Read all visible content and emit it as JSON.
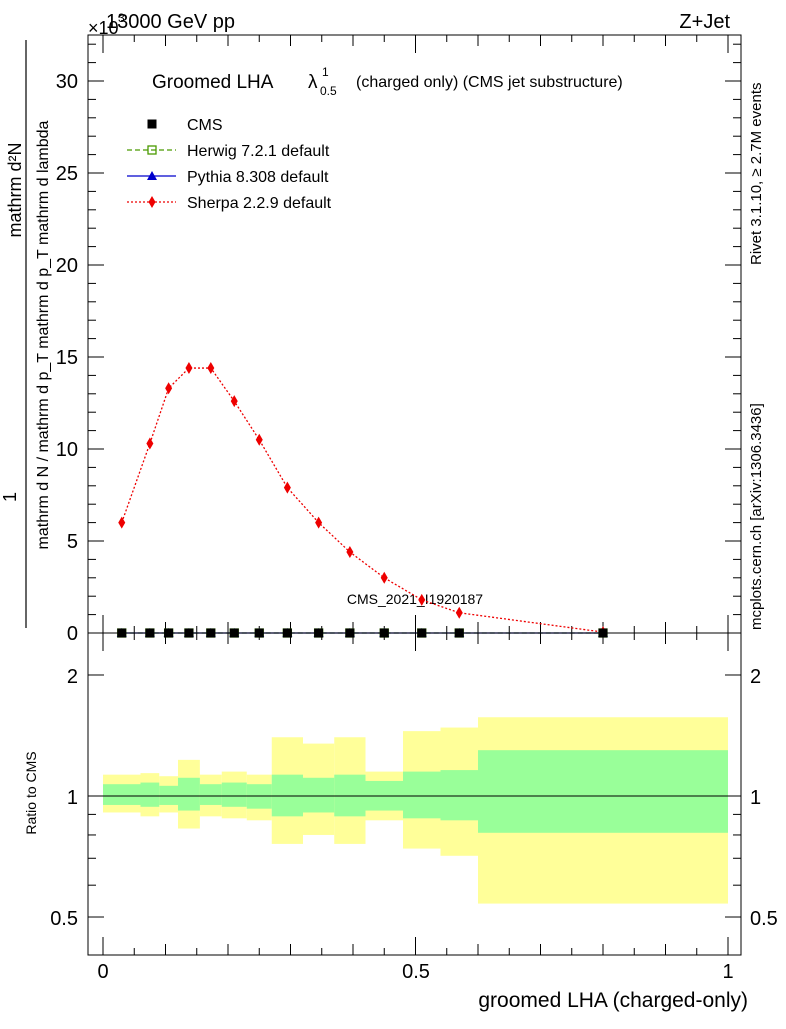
{
  "header": {
    "energy": "13000 GeV pp",
    "process": "Z+Jet",
    "multiplier": "×10",
    "multiplier_exp": "3"
  },
  "side_labels": {
    "rivet": "Rivet 3.1.10, ≥ 2.7M events",
    "mcplots": "mcplots.cern.ch [arXiv:1306.3436]"
  },
  "analysis_id": "CMS_2021_I1920187",
  "main_plot": {
    "title_prefix": "Groomed LHA",
    "title_lambda": "λ",
    "title_sup": "1",
    "title_sub": "0.5",
    "title_suffix": "(charged only) (CMS jet substructure)",
    "ylabel_numerator": "mathrm d²N",
    "ylabel_denominator": "mathrm d N / mathrm d p_T mathrm d p_T mathrm d lambda",
    "ylabel_one": "1",
    "yticks": [
      "0",
      "5",
      "10",
      "15",
      "20",
      "25",
      "30"
    ]
  },
  "ratio_plot": {
    "ylabel": "Ratio to CMS",
    "yticks": [
      "0.5",
      "1",
      "2"
    ],
    "xticks": [
      "0",
      "0.5",
      "1"
    ],
    "xlabel": "groomed LHA (charged-only)"
  },
  "legend": [
    {
      "label": "CMS",
      "color": "#000000",
      "marker": "square-filled",
      "line": "none"
    },
    {
      "label": "Herwig 7.2.1 default",
      "color": "#4a9a00",
      "marker": "square-open",
      "line": "dashed"
    },
    {
      "label": "Pythia 8.308 default",
      "color": "#0000cc",
      "marker": "triangle",
      "line": "solid"
    },
    {
      "label": "Sherpa 2.2.9 default",
      "color": "#ee0000",
      "marker": "diamond",
      "line": "dotted"
    }
  ],
  "chart_data": {
    "type": "line",
    "xlim": [
      0,
      1
    ],
    "ylim": [
      0,
      32.5
    ],
    "y_scale_factor": 1000,
    "ratio_ylim": [
      0.4,
      2.4
    ],
    "ratio_scale": "log",
    "bin_edges": [
      0.0,
      0.06,
      0.09,
      0.12,
      0.155,
      0.19,
      0.23,
      0.27,
      0.32,
      0.37,
      0.42,
      0.48,
      0.54,
      0.6,
      1.0
    ],
    "series": [
      {
        "name": "CMS",
        "x": [
          0.03,
          0.075,
          0.105,
          0.1375,
          0.1725,
          0.21,
          0.25,
          0.295,
          0.345,
          0.395,
          0.45,
          0.51,
          0.57,
          0.8
        ],
        "y": [
          0.0,
          0.0,
          0.0,
          0.0,
          0.0,
          0.0,
          0.0,
          0.0,
          0.0,
          0.0,
          0.0,
          0.0,
          0.0,
          0.0
        ]
      },
      {
        "name": "Herwig 7.2.1 default",
        "x": [
          0.03,
          0.075,
          0.105,
          0.1375,
          0.1725,
          0.21,
          0.25,
          0.295,
          0.345,
          0.395,
          0.45,
          0.51,
          0.57,
          0.8
        ],
        "y": [
          0.0,
          0.0,
          0.0,
          0.0,
          0.0,
          0.0,
          0.0,
          0.0,
          0.0,
          0.0,
          0.0,
          0.0,
          0.0,
          0.0
        ]
      },
      {
        "name": "Pythia 8.308 default",
        "x": [
          0.03,
          0.075,
          0.105,
          0.1375,
          0.1725,
          0.21,
          0.25,
          0.295,
          0.345,
          0.395,
          0.45,
          0.51,
          0.57,
          0.8
        ],
        "y": [
          0.0,
          0.0,
          0.0,
          0.0,
          0.0,
          0.0,
          0.0,
          0.0,
          0.0,
          0.0,
          0.0,
          0.0,
          0.0,
          0.0
        ]
      },
      {
        "name": "Sherpa 2.2.9 default",
        "x": [
          0.03,
          0.075,
          0.105,
          0.1375,
          0.1725,
          0.21,
          0.25,
          0.295,
          0.345,
          0.395,
          0.45,
          0.51,
          0.57,
          0.8
        ],
        "y": [
          6.0,
          10.3,
          13.3,
          14.4,
          14.4,
          12.6,
          10.5,
          7.9,
          6.0,
          4.4,
          3.0,
          1.8,
          1.1,
          0.05
        ]
      }
    ],
    "ratio_bands": {
      "inner": [
        [
          0.95,
          1.07
        ],
        [
          0.94,
          1.08
        ],
        [
          0.95,
          1.06
        ],
        [
          0.92,
          1.11
        ],
        [
          0.95,
          1.07
        ],
        [
          0.94,
          1.08
        ],
        [
          0.93,
          1.07
        ],
        [
          0.89,
          1.13
        ],
        [
          0.91,
          1.11
        ],
        [
          0.89,
          1.13
        ],
        [
          0.92,
          1.09
        ],
        [
          0.88,
          1.15
        ],
        [
          0.87,
          1.16
        ],
        [
          0.81,
          1.3
        ]
      ],
      "outer": [
        [
          0.91,
          1.13
        ],
        [
          0.89,
          1.14
        ],
        [
          0.91,
          1.12
        ],
        [
          0.83,
          1.23
        ],
        [
          0.89,
          1.13
        ],
        [
          0.88,
          1.15
        ],
        [
          0.87,
          1.13
        ],
        [
          0.76,
          1.4
        ],
        [
          0.8,
          1.35
        ],
        [
          0.76,
          1.4
        ],
        [
          0.87,
          1.15
        ],
        [
          0.74,
          1.45
        ],
        [
          0.71,
          1.48
        ],
        [
          0.54,
          1.57
        ]
      ]
    },
    "colors": {
      "band_inner": "#99ff99",
      "band_outer": "#ffff99"
    }
  }
}
